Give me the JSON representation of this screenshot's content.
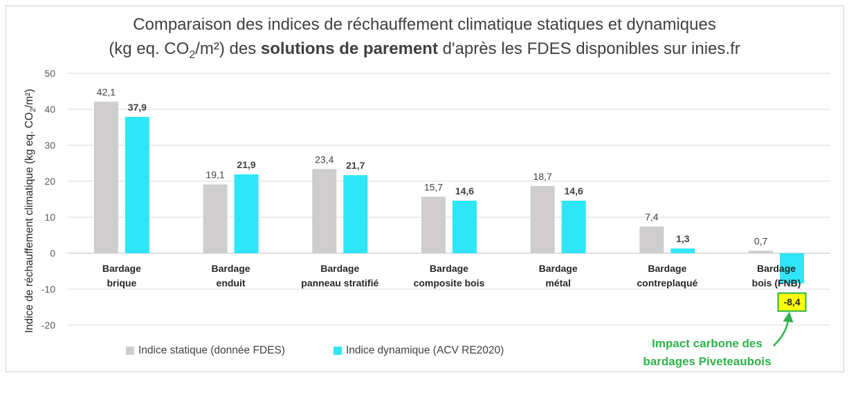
{
  "title": {
    "line1": "Comparaison des indices de réchauffement climatique statiques et dynamiques",
    "line2_pre": "(kg eq. CO",
    "line2_sub": "2",
    "line2_mid": "/m²) des ",
    "line2_bold": "solutions de parement",
    "line2_post": " d'après les FDES disponibles sur inies.fr"
  },
  "y_axis_title": {
    "pre": "Indice de réchauffement climatique (kg eq. CO",
    "sub": "2",
    "post": "/m²)"
  },
  "legend": {
    "static": "Indice statique (donnée FDES)",
    "dynamic": "Indice dynamique (ACV RE2020)"
  },
  "annotation": {
    "line1": "Impact carbone des",
    "line2": "bardages Piveteaubois"
  },
  "colors": {
    "static": "#cfcdcd",
    "dynamic": "#2ee6f6",
    "highlight_fill": "#ffff00",
    "highlight_border": "#2db24a",
    "annotation": "#2db24a"
  },
  "chart_data": {
    "type": "bar",
    "categories": [
      [
        "Bardage",
        "brique"
      ],
      [
        "Bardage",
        "enduit"
      ],
      [
        "Bardage",
        "panneau stratifié"
      ],
      [
        "Bardage",
        "composite bois"
      ],
      [
        "Bardage",
        "métal"
      ],
      [
        "Bardage",
        "contreplaqué"
      ],
      [
        "Bardage",
        "bois (FNB)"
      ]
    ],
    "series": [
      {
        "name": "Indice statique (donnée FDES)",
        "values": [
          42.1,
          19.1,
          23.4,
          15.7,
          18.7,
          7.4,
          0.7
        ],
        "labels": [
          "42,1",
          "19,1",
          "23,4",
          "15,7",
          "18,7",
          "7,4",
          "0,7"
        ]
      },
      {
        "name": "Indice dynamique (ACV RE2020)",
        "values": [
          37.9,
          21.9,
          21.7,
          14.6,
          14.6,
          1.3,
          -8.4
        ],
        "labels": [
          "37,9",
          "21,9",
          "21,7",
          "14,6",
          "14,6",
          "1,3",
          "-8,4"
        ]
      }
    ],
    "yticks": [
      "50",
      "40",
      "30",
      "20",
      "10",
      "0",
      "-10",
      "-20"
    ],
    "ytick_values": [
      50,
      40,
      30,
      20,
      10,
      0,
      -10,
      -20
    ],
    "ylim": [
      -20,
      50
    ],
    "grid": true,
    "legend_position": "bottom-left"
  }
}
